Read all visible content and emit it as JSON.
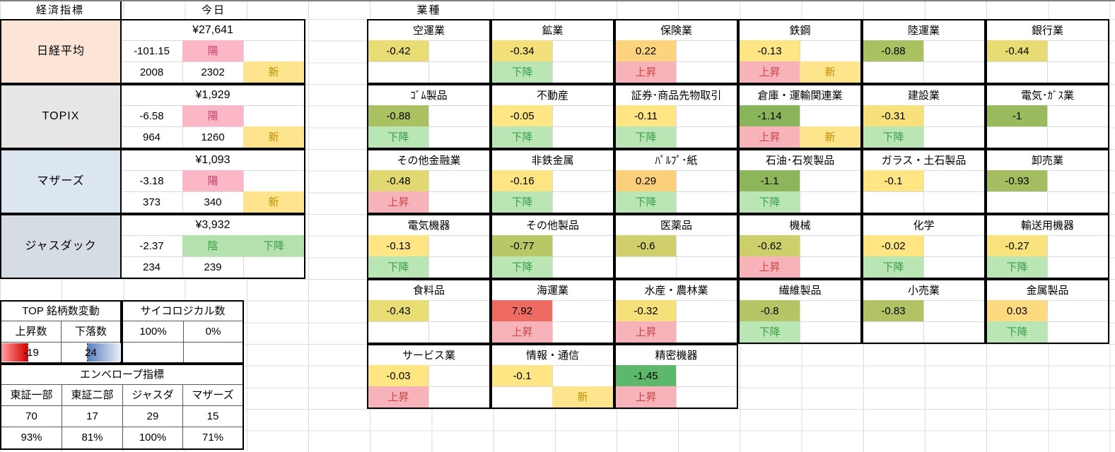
{
  "header": {
    "economic": "経済指標",
    "today": "今日",
    "industry": "業種"
  },
  "colors": {
    "nikkei_label_bg": "#fce4d6",
    "topix_label_bg": "#e7e6e6",
    "mothers_label_bg": "#dce6f1",
    "jasdaq_label_bg": "#d6dce4",
    "candle_up_bg": "#fbb7c5",
    "candle_up_text": "#c5426b",
    "candle_down_bg": "#b5e1ae",
    "candle_down_text": "#379f47",
    "up_bg": "#f8b3ba",
    "up_text": "#cc4747",
    "down_bg": "#bae5b5",
    "down_text": "#379f47",
    "new_bg": "#ffe48e",
    "new_text": "#bf8f00",
    "bar_negative": "#d40000",
    "bar_positive": "#5b7fbd",
    "scale_max_red": "#ee6b63",
    "scale_mid_yellow": "#ffe584",
    "scale_min_green": "#5cb96c"
  },
  "indices": [
    {
      "name": "日経平均",
      "label_bg": "#fce4d6",
      "price": "¥27,641",
      "change": "-101.15",
      "candle": "陽",
      "trend": "",
      "count_a": "2008",
      "count_b": "2302",
      "new_flag": "新"
    },
    {
      "name": "TOPIX",
      "label_bg": "#e7e6e6",
      "price": "¥1,929",
      "change": "-6.58",
      "candle": "陽",
      "trend": "",
      "count_a": "964",
      "count_b": "1260",
      "new_flag": "新"
    },
    {
      "name": "マザーズ",
      "label_bg": "#dce6f1",
      "price": "¥1,093",
      "change": "-3.18",
      "candle": "陽",
      "trend": "",
      "count_a": "373",
      "count_b": "340",
      "new_flag": "新"
    },
    {
      "name": "ジャスダック",
      "label_bg": "#d6dce4",
      "price": "¥3,932",
      "change": "-2.37",
      "candle": "陰",
      "trend": "下降",
      "count_a": "234",
      "count_b": "239",
      "new_flag": ""
    }
  ],
  "top_change": {
    "title": "TOP 銘柄数変動",
    "up_label": "上昇数",
    "down_label": "下落数",
    "up_value": "-19",
    "down_value": "24"
  },
  "psychological": {
    "title": "サイコロジカル数",
    "value1": "100%",
    "value2": "0%"
  },
  "envelope": {
    "title": "エンベロープ指標",
    "columns": [
      "東証一部",
      "東証二部",
      "ジャスダ",
      "マザーズ"
    ],
    "values": [
      "70",
      "17",
      "29",
      "15"
    ],
    "percents": [
      "93%",
      "81%",
      "100%",
      "71%"
    ]
  },
  "sectors": {
    "rows": [
      [
        {
          "name": "空運業",
          "value": "-0.42",
          "color": "#e9dc74",
          "status": "",
          "new_flag": ""
        },
        {
          "name": "鉱業",
          "value": "-0.34",
          "color": "#f4e07a",
          "status": "下降",
          "new_flag": ""
        },
        {
          "name": "保険業",
          "value": "0.22",
          "color": "#fdd37d",
          "status": "上昇",
          "new_flag": ""
        },
        {
          "name": "鉄鋼",
          "value": "-0.13",
          "color": "#ffe583",
          "status": "上昇",
          "new_flag": "新"
        },
        {
          "name": "陸運業",
          "value": "-0.88",
          "color": "#aac162",
          "status": "",
          "new_flag": ""
        },
        {
          "name": "銀行業",
          "value": "-0.44",
          "color": "#e7db73",
          "status": "",
          "new_flag": ""
        }
      ],
      [
        {
          "name": "ｺﾞﾑ製品",
          "value": "-0.88",
          "color": "#aac162",
          "status": "下降",
          "new_flag": ""
        },
        {
          "name": "不動産",
          "value": "-0.05",
          "color": "#ffe684",
          "status": "下降",
          "new_flag": ""
        },
        {
          "name": "証券･商品先物取引",
          "value": "-0.11",
          "color": "#ffe584",
          "status": "下降",
          "new_flag": ""
        },
        {
          "name": "倉庫・運輸関連業",
          "value": "-1.14",
          "color": "#8ab45a",
          "status": "上昇",
          "new_flag": "新"
        },
        {
          "name": "建設業",
          "value": "-0.31",
          "color": "#f8e17b",
          "status": "下降",
          "new_flag": ""
        },
        {
          "name": "電気･ｶﾞｽ業",
          "value": "-1",
          "color": "#9aba5e",
          "status": "",
          "new_flag": ""
        }
      ],
      [
        {
          "name": "その他金融業",
          "value": "-0.48",
          "color": "#e1d871",
          "status": "上昇",
          "new_flag": ""
        },
        {
          "name": "非鉄金属",
          "value": "-0.16",
          "color": "#fee483",
          "status": "下降",
          "new_flag": ""
        },
        {
          "name": "ﾊﾟﾙﾌﾟ･紙",
          "value": "0.29",
          "color": "#fcd07b",
          "status": "下降",
          "new_flag": ""
        },
        {
          "name": "石油･石炭製品",
          "value": "-1.1",
          "color": "#8db65b",
          "status": "下降",
          "new_flag": ""
        },
        {
          "name": "ガラス・土石製品",
          "value": "-0.1",
          "color": "#ffe584",
          "status": "",
          "new_flag": ""
        },
        {
          "name": "卸売業",
          "value": "-0.93",
          "color": "#a3bd60",
          "status": "",
          "new_flag": ""
        }
      ],
      [
        {
          "name": "電気機器",
          "value": "-0.13",
          "color": "#ffe583",
          "status": "下降",
          "new_flag": ""
        },
        {
          "name": "その他製品",
          "value": "-0.77",
          "color": "#b9c766",
          "status": "下降",
          "new_flag": ""
        },
        {
          "name": "医薬品",
          "value": "-0.6",
          "color": "#cfd06b",
          "status": "",
          "new_flag": ""
        },
        {
          "name": "機械",
          "value": "-0.62",
          "color": "#cccf6a",
          "status": "上昇",
          "new_flag": ""
        },
        {
          "name": "化学",
          "value": "-0.02",
          "color": "#ffe683",
          "status": "下降",
          "new_flag": ""
        },
        {
          "name": "輸送用機器",
          "value": "-0.27",
          "color": "#f9e27c",
          "status": "下降",
          "new_flag": ""
        }
      ],
      [
        {
          "name": "食料品",
          "value": "-0.43",
          "color": "#e8dc74",
          "status": "",
          "new_flag": ""
        },
        {
          "name": "海運業",
          "value": "7.92",
          "color": "#ee6b63",
          "status": "上昇",
          "new_flag": ""
        },
        {
          "name": "水産・農林業",
          "value": "-0.32",
          "color": "#f5e07a",
          "status": "上昇",
          "new_flag": ""
        },
        {
          "name": "繊維製品",
          "value": "-0.8",
          "color": "#b5c565",
          "status": "下降",
          "new_flag": ""
        },
        {
          "name": "小売業",
          "value": "-0.83",
          "color": "#b1c364",
          "status": "",
          "new_flag": ""
        },
        {
          "name": "金属製品",
          "value": "0.03",
          "color": "#fdda80",
          "status": "下降",
          "new_flag": ""
        }
      ],
      [
        {
          "name": "サービス業",
          "value": "-0.03",
          "color": "#ffe683",
          "status": "上昇",
          "new_flag": ""
        },
        {
          "name": "情報・通信",
          "value": "-0.1",
          "color": "#ffe584",
          "status": "",
          "new_flag": "新"
        },
        {
          "name": "精密機器",
          "value": "-1.45",
          "color": "#5cb96c",
          "status": "上昇",
          "new_flag": ""
        }
      ]
    ]
  }
}
